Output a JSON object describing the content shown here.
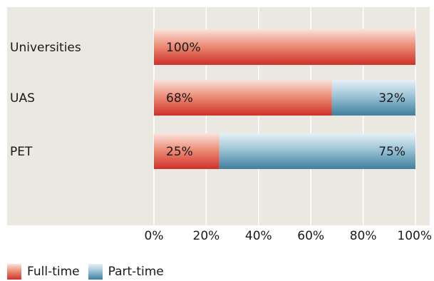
{
  "chart_data": {
    "type": "bar",
    "orientation": "horizontal",
    "stacked": true,
    "categories": [
      "Universities",
      "UAS",
      "PET"
    ],
    "series": [
      {
        "name": "Full-time",
        "values": [
          100,
          68,
          25
        ],
        "labels": [
          "100%",
          "68%",
          "25%"
        ]
      },
      {
        "name": "Part-time",
        "values": [
          0,
          32,
          75
        ],
        "labels": [
          "",
          "32%",
          "75%"
        ]
      }
    ],
    "xlim": [
      0,
      100
    ],
    "xticks": [
      0,
      20,
      40,
      60,
      80,
      100
    ],
    "xtick_labels": [
      "0%",
      "20%",
      "40%",
      "60%",
      "80%",
      "100%"
    ],
    "grid": true,
    "legend_placement": "bottom-left",
    "colors": {
      "background": "#ebe7e1",
      "full_time": "#d9463a",
      "part_time": "#5690ad",
      "grid": "#ffffff"
    }
  }
}
